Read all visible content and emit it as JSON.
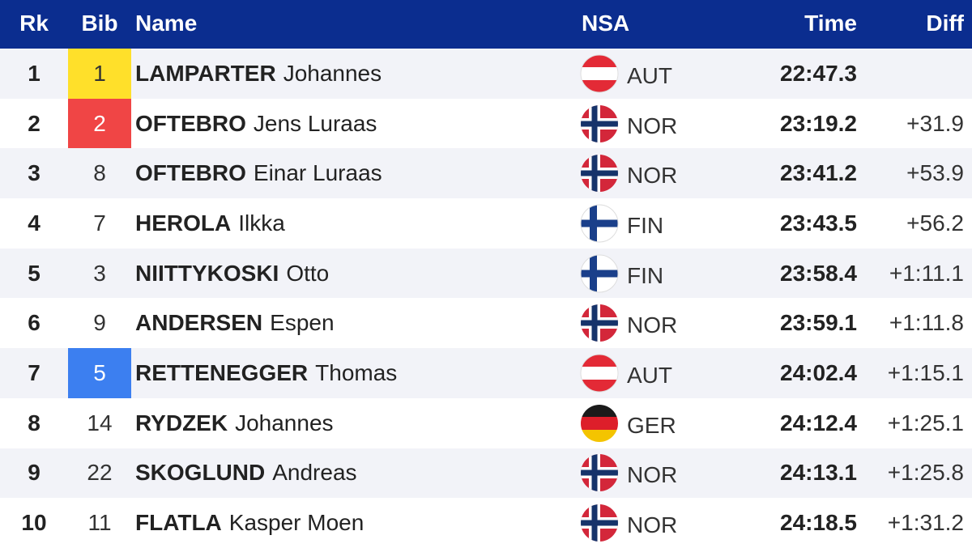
{
  "headers": {
    "rk": "Rk",
    "bib": "Bib",
    "name": "Name",
    "nsa": "NSA",
    "time": "Time",
    "diff": "Diff"
  },
  "rows": [
    {
      "rk": "1",
      "bib": "1",
      "bib_color": "#ffe02a",
      "last": "LAMPARTER",
      "first": "Johannes",
      "flag": "austria-flag-icon",
      "nsa": "AUT",
      "time": "22:47.3",
      "diff": ""
    },
    {
      "rk": "2",
      "bib": "2",
      "bib_color": "#f04545",
      "last": "OFTEBRO",
      "first": "Jens Luraas",
      "flag": "norway-flag-icon",
      "nsa": "NOR",
      "time": "23:19.2",
      "diff": "+31.9"
    },
    {
      "rk": "3",
      "bib": "8",
      "bib_color": "",
      "last": "OFTEBRO",
      "first": "Einar Luraas",
      "flag": "norway-flag-icon",
      "nsa": "NOR",
      "time": "23:41.2",
      "diff": "+53.9"
    },
    {
      "rk": "4",
      "bib": "7",
      "bib_color": "",
      "last": "HEROLA",
      "first": "Ilkka",
      "flag": "finland-flag-icon",
      "nsa": "FIN",
      "time": "23:43.5",
      "diff": "+56.2"
    },
    {
      "rk": "5",
      "bib": "3",
      "bib_color": "",
      "last": "NIITTYKOSKI",
      "first": "Otto",
      "flag": "finland-flag-icon",
      "nsa": "FIN",
      "time": "23:58.4",
      "diff": "+1:11.1"
    },
    {
      "rk": "6",
      "bib": "9",
      "bib_color": "",
      "last": "ANDERSEN",
      "first": "Espen",
      "flag": "norway-flag-icon",
      "nsa": "NOR",
      "time": "23:59.1",
      "diff": "+1:11.8"
    },
    {
      "rk": "7",
      "bib": "5",
      "bib_color": "#3c7ff0",
      "last": "RETTENEGGER",
      "first": "Thomas",
      "flag": "austria-flag-icon",
      "nsa": "AUT",
      "time": "24:02.4",
      "diff": "+1:15.1"
    },
    {
      "rk": "8",
      "bib": "14",
      "bib_color": "",
      "last": "RYDZEK",
      "first": "Johannes",
      "flag": "germany-flag-icon",
      "nsa": "GER",
      "time": "24:12.4",
      "diff": "+1:25.1"
    },
    {
      "rk": "9",
      "bib": "22",
      "bib_color": "",
      "last": "SKOGLUND",
      "first": "Andreas",
      "flag": "norway-flag-icon",
      "nsa": "NOR",
      "time": "24:13.1",
      "diff": "+1:25.8"
    },
    {
      "rk": "10",
      "bib": "11",
      "bib_color": "",
      "last": "FLATLA",
      "first": "Kasper Moen",
      "flag": "norway-flag-icon",
      "nsa": "NOR",
      "time": "24:18.5",
      "diff": "+1:31.2"
    }
  ],
  "colors": {
    "header_bg": "#0b2d8f",
    "header_text": "#ffffff",
    "row_alt": "#f2f3f8"
  }
}
